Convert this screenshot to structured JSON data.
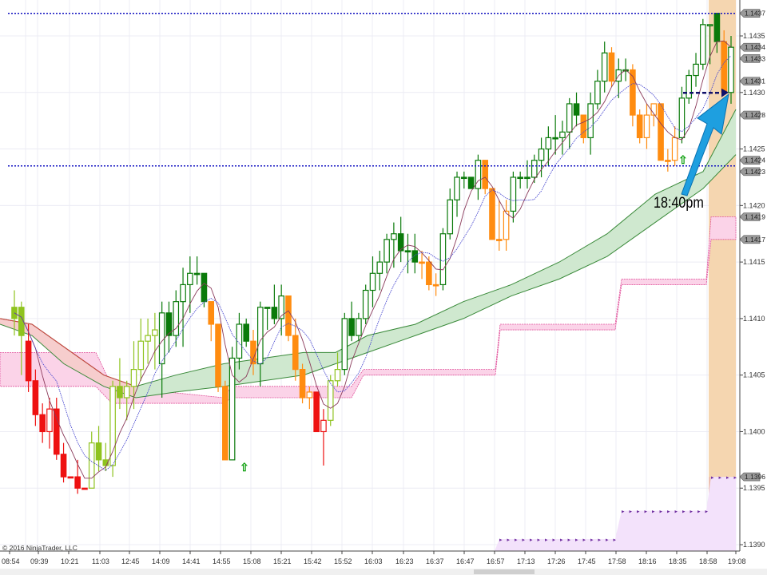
{
  "chart_data": {
    "type": "candlestick",
    "title": "",
    "instrument_hint": "EUR/USD range chart",
    "xlabel": "",
    "ylabel": "",
    "ylim": [
      1.1388,
      1.1438
    ],
    "y_ticks": [
      "1.1435",
      "1.1430",
      "1.1425",
      "1.1420",
      "1.1415",
      "1.1410",
      "1.1405",
      "1.1400",
      "1.1395",
      "1.1390"
    ],
    "x_ticks": [
      "08:54",
      "09:39",
      "10:21",
      "11:03",
      "12:45",
      "14:09",
      "14:41",
      "14:55",
      "15:08",
      "15:21",
      "15:42",
      "15:52",
      "16:03",
      "16:23",
      "16:37",
      "16:47",
      "16:57",
      "17:13",
      "17:26",
      "17:45",
      "17:58",
      "18:16",
      "18:35",
      "18:58",
      "19:08"
    ],
    "price_tags": [
      "1.1437",
      "1.1434",
      "1.1433",
      "1.1431",
      "1.1428",
      "1.1424",
      "1.1423",
      "1.1419",
      "1.1417",
      "1.1396"
    ],
    "horizontal_lines": [
      {
        "price": 1.1437,
        "style": "dotted",
        "color": "#1010c0"
      },
      {
        "price": 1.14235,
        "style": "dotted",
        "color": "#1010c0"
      }
    ],
    "annotation": {
      "text": "18:40pm",
      "arrow": "blue arrow pointing up-right to 1.1430"
    },
    "candles": [
      {
        "o": 1.141,
        "h": 1.14125,
        "l": 1.14085,
        "c": 1.1411,
        "col": "lime"
      },
      {
        "o": 1.14085,
        "h": 1.14115,
        "l": 1.1405,
        "c": 1.1411,
        "col": "lime"
      },
      {
        "o": 1.1408,
        "h": 1.14095,
        "l": 1.14035,
        "c": 1.14045,
        "col": "red"
      },
      {
        "o": 1.14045,
        "h": 1.14055,
        "l": 1.14005,
        "c": 1.14015,
        "col": "red"
      },
      {
        "o": 1.14015,
        "h": 1.14025,
        "l": 1.1399,
        "c": 1.14,
        "col": "red"
      },
      {
        "o": 1.14,
        "h": 1.1403,
        "l": 1.13985,
        "c": 1.1402,
        "col": "red-hollow"
      },
      {
        "o": 1.1402,
        "h": 1.1403,
        "l": 1.13975,
        "c": 1.1398,
        "col": "red"
      },
      {
        "o": 1.1398,
        "h": 1.1399,
        "l": 1.13955,
        "c": 1.1396,
        "col": "red"
      },
      {
        "o": 1.1396,
        "h": 1.1396,
        "l": 1.1396,
        "c": 1.1396,
        "col": "red"
      },
      {
        "o": 1.1396,
        "h": 1.13975,
        "l": 1.13945,
        "c": 1.1395,
        "col": "red"
      },
      {
        "o": 1.1395,
        "h": 1.1395,
        "l": 1.1395,
        "c": 1.1395,
        "col": "red"
      },
      {
        "o": 1.1395,
        "h": 1.14,
        "l": 1.1395,
        "c": 1.1399,
        "col": "lime-hollow"
      },
      {
        "o": 1.1399,
        "h": 1.14005,
        "l": 1.13965,
        "c": 1.13975,
        "col": "lime"
      },
      {
        "o": 1.13975,
        "h": 1.1399,
        "l": 1.13965,
        "c": 1.1397,
        "col": "lime"
      },
      {
        "o": 1.1397,
        "h": 1.14045,
        "l": 1.1396,
        "c": 1.1404,
        "col": "lime-hollow"
      },
      {
        "o": 1.1404,
        "h": 1.14065,
        "l": 1.1402,
        "c": 1.1403,
        "col": "lime"
      },
      {
        "o": 1.1403,
        "h": 1.14045,
        "l": 1.1401,
        "c": 1.1404,
        "col": "lime-hollow"
      },
      {
        "o": 1.1404,
        "h": 1.1408,
        "l": 1.1402,
        "c": 1.14055,
        "col": "lime-hollow"
      },
      {
        "o": 1.14055,
        "h": 1.141,
        "l": 1.14045,
        "c": 1.1408,
        "col": "lime-hollow"
      },
      {
        "o": 1.1408,
        "h": 1.141,
        "l": 1.1406,
        "c": 1.14085,
        "col": "lime-hollow"
      },
      {
        "o": 1.14085,
        "h": 1.14105,
        "l": 1.14055,
        "c": 1.1409,
        "col": "lime-hollow"
      },
      {
        "o": 1.1406,
        "h": 1.14115,
        "l": 1.1403,
        "c": 1.14105,
        "col": "green-hollow"
      },
      {
        "o": 1.14105,
        "h": 1.14115,
        "l": 1.1407,
        "c": 1.14085,
        "col": "green"
      },
      {
        "o": 1.14085,
        "h": 1.14125,
        "l": 1.14075,
        "c": 1.14115,
        "col": "green-hollow"
      },
      {
        "o": 1.14115,
        "h": 1.14145,
        "l": 1.14075,
        "c": 1.1413,
        "col": "green-hollow"
      },
      {
        "o": 1.1413,
        "h": 1.14155,
        "l": 1.14105,
        "c": 1.1414,
        "col": "green-hollow"
      },
      {
        "o": 1.1414,
        "h": 1.14155,
        "l": 1.1413,
        "c": 1.1414,
        "col": "green"
      },
      {
        "o": 1.1414,
        "h": 1.1414,
        "l": 1.1411,
        "c": 1.14115,
        "col": "green"
      },
      {
        "o": 1.14115,
        "h": 1.14115,
        "l": 1.1408,
        "c": 1.14095,
        "col": "orange"
      },
      {
        "o": 1.14095,
        "h": 1.14095,
        "l": 1.14035,
        "c": 1.1404,
        "col": "orange"
      },
      {
        "o": 1.1404,
        "h": 1.14045,
        "l": 1.13975,
        "c": 1.13975,
        "col": "orange"
      },
      {
        "o": 1.13975,
        "h": 1.14075,
        "l": 1.13975,
        "c": 1.14065,
        "col": "green-hollow"
      },
      {
        "o": 1.14065,
        "h": 1.14105,
        "l": 1.14055,
        "c": 1.14095,
        "col": "green-hollow"
      },
      {
        "o": 1.14095,
        "h": 1.141,
        "l": 1.14075,
        "c": 1.1408,
        "col": "green"
      },
      {
        "o": 1.1408,
        "h": 1.1409,
        "l": 1.1405,
        "c": 1.1406,
        "col": "orange"
      },
      {
        "o": 1.1406,
        "h": 1.14115,
        "l": 1.1404,
        "c": 1.1411,
        "col": "green-hollow"
      },
      {
        "o": 1.1411,
        "h": 1.1411,
        "l": 1.1409,
        "c": 1.1411,
        "col": "green"
      },
      {
        "o": 1.1411,
        "h": 1.1413,
        "l": 1.14095,
        "c": 1.141,
        "col": "green"
      },
      {
        "o": 1.141,
        "h": 1.1413,
        "l": 1.14085,
        "c": 1.1412,
        "col": "green-hollow"
      },
      {
        "o": 1.1412,
        "h": 1.1412,
        "l": 1.1408,
        "c": 1.14085,
        "col": "orange"
      },
      {
        "o": 1.14085,
        "h": 1.141,
        "l": 1.14045,
        "c": 1.14055,
        "col": "orange"
      },
      {
        "o": 1.14055,
        "h": 1.1406,
        "l": 1.14025,
        "c": 1.1403,
        "col": "orange"
      },
      {
        "o": 1.1403,
        "h": 1.1404,
        "l": 1.1402,
        "c": 1.14035,
        "col": "orange-hollow"
      },
      {
        "o": 1.14035,
        "h": 1.14035,
        "l": 1.14,
        "c": 1.14,
        "col": "red"
      },
      {
        "o": 1.14,
        "h": 1.1402,
        "l": 1.1397,
        "c": 1.1401,
        "col": "red-hollow"
      },
      {
        "o": 1.1401,
        "h": 1.1405,
        "l": 1.14005,
        "c": 1.14045,
        "col": "lime-hollow"
      },
      {
        "o": 1.14045,
        "h": 1.1407,
        "l": 1.1404,
        "c": 1.14055,
        "col": "lime-hollow"
      },
      {
        "o": 1.14055,
        "h": 1.14105,
        "l": 1.1405,
        "c": 1.141,
        "col": "green-hollow"
      },
      {
        "o": 1.141,
        "h": 1.14115,
        "l": 1.1408,
        "c": 1.14085,
        "col": "green"
      },
      {
        "o": 1.14085,
        "h": 1.14105,
        "l": 1.1408,
        "c": 1.141,
        "col": "green-hollow"
      },
      {
        "o": 1.141,
        "h": 1.1413,
        "l": 1.14095,
        "c": 1.14125,
        "col": "green-hollow"
      },
      {
        "o": 1.14125,
        "h": 1.14155,
        "l": 1.1411,
        "c": 1.1414,
        "col": "green-hollow"
      },
      {
        "o": 1.1414,
        "h": 1.1416,
        "l": 1.14125,
        "c": 1.1415,
        "col": "green-hollow"
      },
      {
        "o": 1.1415,
        "h": 1.14175,
        "l": 1.1414,
        "c": 1.1417,
        "col": "green-hollow"
      },
      {
        "o": 1.1417,
        "h": 1.14185,
        "l": 1.14145,
        "c": 1.14175,
        "col": "green-hollow"
      },
      {
        "o": 1.14175,
        "h": 1.1419,
        "l": 1.1415,
        "c": 1.1416,
        "col": "green"
      },
      {
        "o": 1.1416,
        "h": 1.14175,
        "l": 1.1414,
        "c": 1.1416,
        "col": "green"
      },
      {
        "o": 1.1416,
        "h": 1.14175,
        "l": 1.1414,
        "c": 1.1415,
        "col": "green"
      },
      {
        "o": 1.1415,
        "h": 1.1416,
        "l": 1.14135,
        "c": 1.1415,
        "col": "orange"
      },
      {
        "o": 1.1415,
        "h": 1.14155,
        "l": 1.14125,
        "c": 1.1413,
        "col": "orange"
      },
      {
        "o": 1.1413,
        "h": 1.1414,
        "l": 1.1412,
        "c": 1.1413,
        "col": "orange"
      },
      {
        "o": 1.1413,
        "h": 1.1418,
        "l": 1.14125,
        "c": 1.14175,
        "col": "green-hollow"
      },
      {
        "o": 1.14175,
        "h": 1.14215,
        "l": 1.1417,
        "c": 1.14205,
        "col": "green-hollow"
      },
      {
        "o": 1.14205,
        "h": 1.1423,
        "l": 1.1419,
        "c": 1.14225,
        "col": "green-hollow"
      },
      {
        "o": 1.14225,
        "h": 1.1423,
        "l": 1.14215,
        "c": 1.14225,
        "col": "green"
      },
      {
        "o": 1.14225,
        "h": 1.14225,
        "l": 1.14215,
        "c": 1.14215,
        "col": "green"
      },
      {
        "o": 1.14215,
        "h": 1.14245,
        "l": 1.14205,
        "c": 1.1424,
        "col": "green-hollow"
      },
      {
        "o": 1.1424,
        "h": 1.1424,
        "l": 1.1421,
        "c": 1.14215,
        "col": "orange"
      },
      {
        "o": 1.14215,
        "h": 1.14215,
        "l": 1.1417,
        "c": 1.1417,
        "col": "orange"
      },
      {
        "o": 1.1417,
        "h": 1.14205,
        "l": 1.1416,
        "c": 1.1417,
        "col": "orange"
      },
      {
        "o": 1.1417,
        "h": 1.14205,
        "l": 1.1416,
        "c": 1.14195,
        "col": "orange-hollow"
      },
      {
        "o": 1.14195,
        "h": 1.1423,
        "l": 1.14185,
        "c": 1.14225,
        "col": "green-hollow"
      },
      {
        "o": 1.14225,
        "h": 1.1423,
        "l": 1.14215,
        "c": 1.14225,
        "col": "green"
      },
      {
        "o": 1.14225,
        "h": 1.1424,
        "l": 1.14215,
        "c": 1.14225,
        "col": "green"
      },
      {
        "o": 1.14225,
        "h": 1.14245,
        "l": 1.1422,
        "c": 1.1424,
        "col": "green-hollow"
      },
      {
        "o": 1.1424,
        "h": 1.1426,
        "l": 1.14225,
        "c": 1.1425,
        "col": "green-hollow"
      },
      {
        "o": 1.1425,
        "h": 1.1427,
        "l": 1.14235,
        "c": 1.1426,
        "col": "green-hollow"
      },
      {
        "o": 1.1426,
        "h": 1.1428,
        "l": 1.14245,
        "c": 1.1426,
        "col": "green"
      },
      {
        "o": 1.1426,
        "h": 1.14275,
        "l": 1.14245,
        "c": 1.14265,
        "col": "green-hollow"
      },
      {
        "o": 1.14265,
        "h": 1.14295,
        "l": 1.1425,
        "c": 1.1429,
        "col": "green-hollow"
      },
      {
        "o": 1.1429,
        "h": 1.143,
        "l": 1.1427,
        "c": 1.1428,
        "col": "green"
      },
      {
        "o": 1.1428,
        "h": 1.1428,
        "l": 1.14255,
        "c": 1.1426,
        "col": "orange"
      },
      {
        "o": 1.1426,
        "h": 1.143,
        "l": 1.14245,
        "c": 1.1429,
        "col": "green-hollow"
      },
      {
        "o": 1.1429,
        "h": 1.1432,
        "l": 1.14285,
        "c": 1.1431,
        "col": "green-hollow"
      },
      {
        "o": 1.1431,
        "h": 1.14345,
        "l": 1.143,
        "c": 1.14335,
        "col": "green-hollow"
      },
      {
        "o": 1.14335,
        "h": 1.1434,
        "l": 1.14305,
        "c": 1.1431,
        "col": "orange"
      },
      {
        "o": 1.1431,
        "h": 1.1433,
        "l": 1.14295,
        "c": 1.1432,
        "col": "green-hollow"
      },
      {
        "o": 1.1432,
        "h": 1.1433,
        "l": 1.1431,
        "c": 1.1432,
        "col": "green"
      },
      {
        "o": 1.1432,
        "h": 1.14325,
        "l": 1.1427,
        "c": 1.1428,
        "col": "orange"
      },
      {
        "o": 1.1428,
        "h": 1.14285,
        "l": 1.14255,
        "c": 1.1426,
        "col": "orange"
      },
      {
        "o": 1.1426,
        "h": 1.1429,
        "l": 1.1425,
        "c": 1.1428,
        "col": "orange-hollow"
      },
      {
        "o": 1.1428,
        "h": 1.1429,
        "l": 1.1427,
        "c": 1.1429,
        "col": "orange-hollow"
      },
      {
        "o": 1.1429,
        "h": 1.1429,
        "l": 1.1424,
        "c": 1.1424,
        "col": "orange"
      },
      {
        "o": 1.1424,
        "h": 1.1425,
        "l": 1.1423,
        "c": 1.1424,
        "col": "orange"
      },
      {
        "o": 1.1424,
        "h": 1.1427,
        "l": 1.14235,
        "c": 1.1426,
        "col": "orange-hollow"
      },
      {
        "o": 1.1426,
        "h": 1.14305,
        "l": 1.14255,
        "c": 1.14295,
        "col": "green-hollow"
      },
      {
        "o": 1.14295,
        "h": 1.1432,
        "l": 1.1429,
        "c": 1.14315,
        "col": "green-hollow"
      },
      {
        "o": 1.14315,
        "h": 1.14335,
        "l": 1.14305,
        "c": 1.14325,
        "col": "green-hollow"
      },
      {
        "o": 1.14325,
        "h": 1.14365,
        "l": 1.1432,
        "c": 1.1436,
        "col": "green-hollow"
      },
      {
        "o": 1.1436,
        "h": 1.1436,
        "l": 1.14325,
        "c": 1.1436,
        "col": "green-hollow"
      },
      {
        "o": 1.1437,
        "h": 1.1437,
        "l": 1.14335,
        "c": 1.14345,
        "col": "green"
      },
      {
        "o": 1.14345,
        "h": 1.14355,
        "l": 1.143,
        "c": 1.143,
        "col": "orange"
      },
      {
        "o": 1.143,
        "h": 1.1435,
        "l": 1.1429,
        "c": 1.1434,
        "col": "green-hollow"
      }
    ]
  },
  "axis": {
    "y_ticks": [
      "1.1435",
      "1.1430",
      "1.1425",
      "1.1420",
      "1.1415",
      "1.1410",
      "1.1405",
      "1.1400",
      "1.1395",
      "1.1390"
    ],
    "x_ticks": [
      "08:54",
      "09:39",
      "10:21",
      "11:03",
      "12:45",
      "14:09",
      "14:41",
      "14:55",
      "15:08",
      "15:21",
      "15:42",
      "15:52",
      "16:03",
      "16:23",
      "16:37",
      "16:47",
      "16:57",
      "17:13",
      "17:26",
      "17:45",
      "17:58",
      "18:16",
      "18:35",
      "18:58",
      "19:08"
    ]
  },
  "price_tags": [
    "1.1437",
    "1.1434",
    "1.1433",
    "1.1431",
    "1.1428",
    "1.1424",
    "1.1423",
    "1.1419",
    "1.1417",
    "1.1396"
  ],
  "annotation": {
    "text": "18:40pm"
  },
  "footer": {
    "copyright": "© 2016 NinjaTrader, LLC"
  },
  "colors": {
    "green": "#0a7a0a",
    "lime": "#8fc31f",
    "red": "#ee1111",
    "orange": "#ff8c10",
    "dotted_line": "#1010c0",
    "highlight": "#f2c89a",
    "arrow": "#1e9fe0"
  }
}
